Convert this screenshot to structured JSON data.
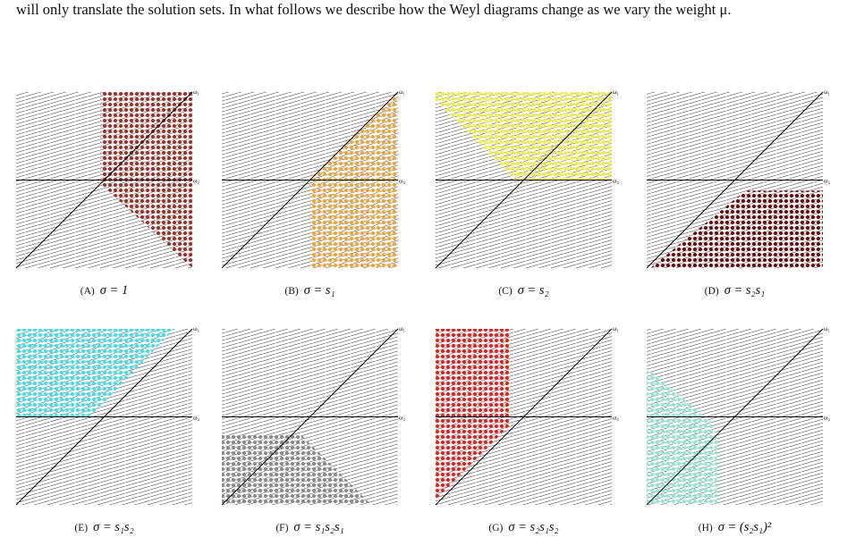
{
  "paragraph": "will only translate the solution sets. In what follows we describe how the Weyl diagrams change as we vary the weight μ.",
  "axes": {
    "omega1": "ω₁",
    "omega2": "ω₂"
  },
  "panels": [
    {
      "label": "(A)",
      "caption": "σ = 1",
      "color": "#a0302c"
    },
    {
      "label": "(B)",
      "caption": "σ = s₁",
      "color": "#f2a33a"
    },
    {
      "label": "(C)",
      "caption": "σ = s₂",
      "color": "#f3f03c"
    },
    {
      "label": "(D)",
      "caption": "σ = s₂s₁",
      "color": "#6e0a10"
    },
    {
      "label": "(E)",
      "caption": "σ = s₁s₂",
      "color": "#3fe0e6"
    },
    {
      "label": "(F)",
      "caption": "σ = s₁s₂s₁",
      "color": "#8a8a8a"
    },
    {
      "label": "(G)",
      "caption": "σ = s₂s₁s₂",
      "color": "#e8201c"
    },
    {
      "label": "(H)",
      "caption": "σ = (s₂s₁)²",
      "color": "#8ee8d2"
    }
  ]
}
